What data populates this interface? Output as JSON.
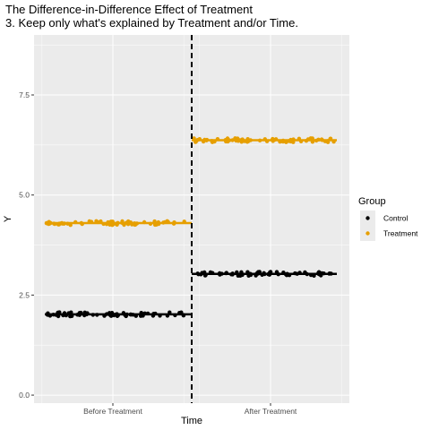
{
  "chart_data": {
    "type": "scatter",
    "title": "The Difference-in-Difference Effect of Treatment",
    "subtitle": "3. Keep only what's explained by Treatment and/or Time.",
    "xlabel": "Time",
    "ylabel": "Y",
    "categories": [
      "Before Treatment",
      "After Treatment"
    ],
    "ylim": [
      -0.2,
      9.0
    ],
    "yticks": [
      0.0,
      2.5,
      5.0,
      7.5
    ],
    "ytick_labels": [
      "0.0",
      "2.5",
      "5.0",
      "7.5"
    ],
    "grid": true,
    "divider": {
      "at": "between categories",
      "style": "dashed"
    },
    "legend": {
      "title": "Group",
      "placement": "right",
      "entries": [
        "Control",
        "Treatment"
      ]
    },
    "series": [
      {
        "name": "Control",
        "color": "#000000",
        "means": {
          "Before Treatment": 2.02,
          "After Treatment": 3.03
        }
      },
      {
        "name": "Treatment",
        "color": "#E69F00",
        "means": {
          "Before Treatment": 4.3,
          "After Treatment": 6.37
        }
      }
    ]
  }
}
